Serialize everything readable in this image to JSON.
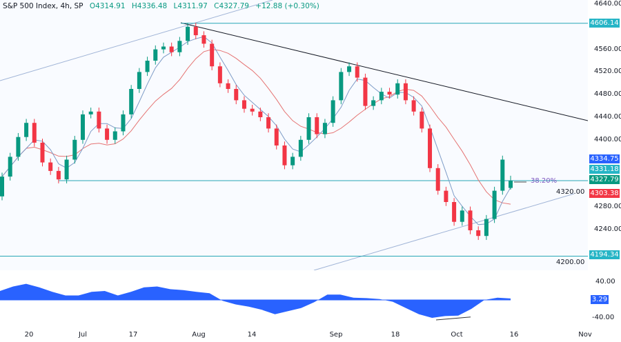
{
  "header": {
    "symbol": "S&P 500 Index, 4h, SP",
    "open": "O4314.91",
    "high": "H4336.48",
    "low": "L4311.97",
    "close": "C4327.79",
    "change": "+12.88 (+0.30%)"
  },
  "colors": {
    "up": "#089981",
    "down": "#f23645",
    "ma_fast": "#7e9cc7",
    "ma_slow": "#e57373",
    "level_line": "#26a6b5",
    "trendline": "#131722",
    "channel": "#9fb3d6",
    "oscillator": "#2962ff"
  },
  "chart_data": [
    {
      "type": "candlestick",
      "ylim": [
        4180,
        4647
      ],
      "y_ticks": [
        "4640.00",
        "4560.00",
        "4520.00",
        "4480.00",
        "4440.00",
        "4400.00",
        "4320.00",
        "4280.00",
        "4240.00",
        "4200.00"
      ],
      "x_ticks": [
        "20",
        "Jul",
        "17",
        "Aug",
        "14",
        "Sep",
        "18",
        "Oct",
        "16",
        "Nov"
      ],
      "closes": [
        4335,
        4370,
        4405,
        4430,
        4395,
        4360,
        4345,
        4330,
        4365,
        4400,
        4445,
        4450,
        4420,
        4400,
        4415,
        4445,
        4490,
        4520,
        4540,
        4560,
        4565,
        4555,
        4575,
        4600,
        4585,
        4570,
        4530,
        4500,
        4490,
        4470,
        4455,
        4450,
        4440,
        4420,
        4390,
        4355,
        4370,
        4400,
        4440,
        4410,
        4430,
        4470,
        4520,
        4530,
        4510,
        4460,
        4470,
        4485,
        4480,
        4500,
        4470,
        4450,
        4420,
        4350,
        4310,
        4290,
        4255,
        4275,
        4240,
        4230,
        4260,
        4310,
        4365,
        4327.79
      ],
      "last_bar": {
        "open": 4314.91,
        "high": 4336.48,
        "low": 4311.97,
        "close": 4327.79
      },
      "price_tags": [
        {
          "value": "4606.14",
          "color": "#26b5c6"
        },
        {
          "value": "4334.75",
          "color": "#2962ff"
        },
        {
          "value": "4331.18",
          "color": "#26b5c6"
        },
        {
          "value": "4327.79",
          "color": "#089981"
        },
        {
          "value": "4303.38",
          "color": "#f23645"
        },
        {
          "value": "4194.34",
          "color": "#26b5c6"
        }
      ],
      "horizontal_levels": [
        4606.14,
        4327.79,
        4194.34
      ],
      "fib_label": "38.20%"
    },
    {
      "type": "area",
      "ylim": [
        -55,
        50
      ],
      "y_ticks": [
        "40.00",
        "-40.00"
      ],
      "values": [
        20,
        30,
        36,
        28,
        18,
        10,
        10,
        18,
        20,
        10,
        18,
        28,
        30,
        24,
        22,
        18,
        15,
        -2,
        -10,
        -15,
        -22,
        -32,
        -25,
        -18,
        -5,
        12,
        12,
        5,
        4,
        2,
        -4,
        -18,
        -32,
        -40,
        -36,
        -35,
        -20,
        0,
        5,
        3.29
      ],
      "last_value": "3.29"
    }
  ]
}
